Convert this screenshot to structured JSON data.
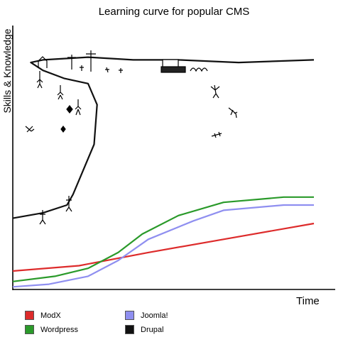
{
  "chart_data": {
    "type": "line",
    "title": "Learning curve for popular CMS",
    "xlabel": "Time",
    "ylabel": "Skills & Knowledge",
    "xlim": [
      0,
      100
    ],
    "ylim": [
      0,
      100
    ],
    "grid": false,
    "legend_position": "bottom",
    "series": [
      {
        "name": "ModX",
        "color": "#dd2b2b",
        "points": [
          [
            0,
            7
          ],
          [
            22,
            9
          ],
          [
            45,
            14
          ],
          [
            70,
            19
          ],
          [
            100,
            25
          ]
        ]
      },
      {
        "name": "Joomla!",
        "color": "#8f8ff0",
        "points": [
          [
            0,
            1
          ],
          [
            12,
            2
          ],
          [
            25,
            5
          ],
          [
            35,
            11
          ],
          [
            45,
            19
          ],
          [
            60,
            26
          ],
          [
            70,
            30
          ],
          [
            90,
            32
          ],
          [
            100,
            32
          ]
        ]
      },
      {
        "name": "Wordpress",
        "color": "#2a9a2a",
        "points": [
          [
            0,
            3
          ],
          [
            14,
            5
          ],
          [
            25,
            8
          ],
          [
            35,
            14
          ],
          [
            43,
            21
          ],
          [
            55,
            28
          ],
          [
            70,
            33
          ],
          [
            90,
            35
          ],
          [
            100,
            35
          ]
        ]
      },
      {
        "name": "Drupal",
        "color": "#111111",
        "points": [
          [
            0,
            27
          ],
          [
            10,
            29
          ],
          [
            18,
            32
          ],
          [
            20,
            36
          ],
          [
            27,
            55
          ],
          [
            28,
            70
          ],
          [
            25,
            78
          ],
          [
            17,
            80
          ],
          [
            10,
            83
          ],
          [
            6,
            86
          ],
          [
            10,
            87
          ],
          [
            25,
            88
          ],
          [
            40,
            87
          ],
          [
            55,
            87
          ],
          [
            75,
            86
          ],
          [
            100,
            87
          ]
        ]
      }
    ]
  }
}
